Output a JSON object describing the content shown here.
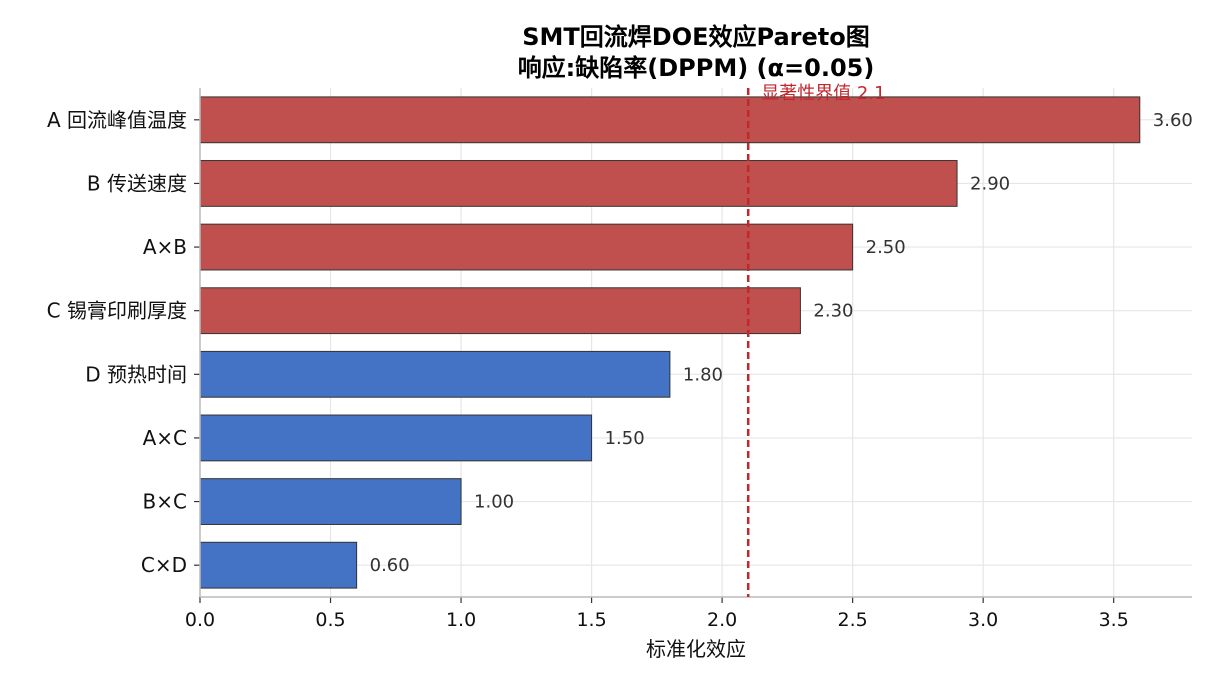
{
  "chart_data": {
    "type": "bar",
    "orientation": "horizontal",
    "title": "SMT回流焊DOE效应Pareto图",
    "subtitle": "响应:缺陷率(DPPM)  (α=0.05)",
    "xlabel": "标准化效应",
    "ylabel": "",
    "xlim": [
      0,
      3.8
    ],
    "xticks": [
      "0.0",
      "0.5",
      "1.0",
      "1.5",
      "2.0",
      "2.5",
      "3.0",
      "3.5"
    ],
    "grid": true,
    "categories": [
      "A 回流峰值温度",
      "B 传送速度",
      "A×B",
      "C 锡膏印刷厚度",
      "D 预热时间",
      "A×C",
      "B×C",
      "C×D"
    ],
    "values": [
      3.6,
      2.9,
      2.5,
      2.3,
      1.8,
      1.5,
      1.0,
      0.6
    ],
    "value_labels": [
      "3.60",
      "2.90",
      "2.50",
      "2.30",
      "1.80",
      "1.50",
      "1.00",
      "0.60"
    ],
    "threshold": {
      "value": 2.1,
      "label": "显著性界值 2.1",
      "color": "#c0282d",
      "style": "dashed"
    },
    "colors": {
      "significant": "#c0504d",
      "not_significant": "#4472c4",
      "edge": "#333333",
      "grid": "#e6e6e6"
    }
  }
}
